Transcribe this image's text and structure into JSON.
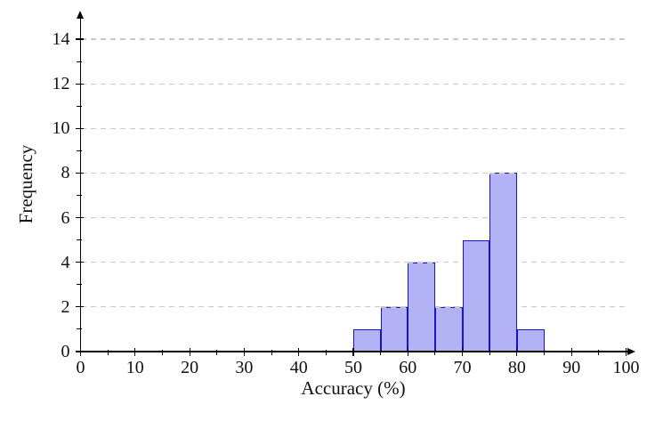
{
  "chart_data": {
    "type": "bar",
    "subtype": "histogram",
    "title": "",
    "xlabel": "Accuracy (%)",
    "ylabel": "Frequency",
    "xlim": [
      0,
      100
    ],
    "ylim": [
      0,
      15
    ],
    "bin_width": 5,
    "bins": [
      {
        "start": 50,
        "end": 55,
        "count": 1
      },
      {
        "start": 55,
        "end": 60,
        "count": 2
      },
      {
        "start": 60,
        "end": 65,
        "count": 4
      },
      {
        "start": 65,
        "end": 70,
        "count": 2
      },
      {
        "start": 70,
        "end": 75,
        "count": 5
      },
      {
        "start": 75,
        "end": 80,
        "count": 8
      },
      {
        "start": 80,
        "end": 85,
        "count": 1
      }
    ],
    "x_major_ticks": [
      0,
      10,
      20,
      30,
      40,
      50,
      60,
      70,
      80,
      90,
      100
    ],
    "x_minor_ticks": [
      5,
      15,
      25,
      35,
      45,
      55,
      65,
      75,
      85,
      95
    ],
    "y_major_ticks": [
      0,
      2,
      4,
      6,
      8,
      10,
      12,
      14
    ],
    "y_minor_ticks": [
      1,
      3,
      5,
      7,
      9,
      11,
      13
    ],
    "grid": {
      "horizontal_at": [
        2,
        4,
        6,
        8,
        10,
        12,
        14
      ],
      "style": "dashed",
      "vertical": false
    },
    "legend": null,
    "axis_arrows": {
      "x": "right",
      "y": "up"
    },
    "colors": {
      "bar_fill": "#b2b2f5",
      "bar_border": "#1414c8",
      "grid_line": "#c8c8c8",
      "axis": "#000000",
      "text": "#111111",
      "background": "#ffffff"
    }
  }
}
